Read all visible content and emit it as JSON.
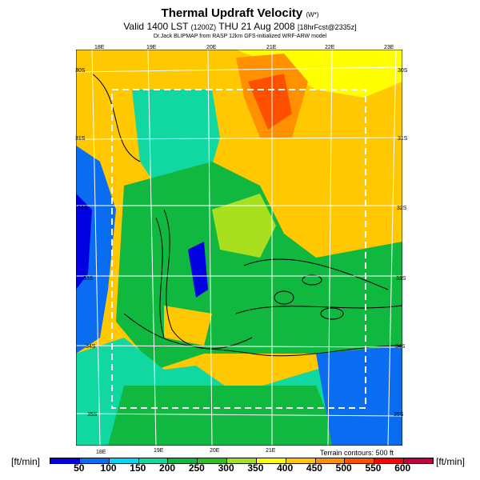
{
  "header": {
    "title": "Thermal Updraft Velocity",
    "title_units": "(W*)",
    "valid_prefix": "Valid 1400 LST",
    "valid_z": "(1200Z)",
    "valid_date": "THU 21 Aug 2008",
    "forecast": "[18hrFcst@2335z]",
    "credit": "Dr.Jack BLIPMAP from RASP 12km GFS-initialized WRF-ARW model"
  },
  "map": {
    "lon_top": [
      "18E",
      "19E",
      "20E",
      "21E",
      "22E",
      "23E"
    ],
    "lon_bottom": [
      "18E",
      "19E",
      "20E",
      "21E"
    ],
    "lat_left": [
      "30S",
      "31S",
      "32S",
      "33S",
      "34S",
      "35S"
    ],
    "lat_right": [
      "30S",
      "31S",
      "32S",
      "33S",
      "34S",
      "35S"
    ],
    "terrain_note": "Terrain contours: 500 ft"
  },
  "colorbar": {
    "unit_left": "[ft/min]",
    "unit_right": "[ft/min]",
    "ticks": [
      "50",
      "100",
      "150",
      "200",
      "250",
      "300",
      "350",
      "400",
      "450",
      "500",
      "550",
      "600"
    ],
    "colors": [
      "#0000e0",
      "#0a6cf0",
      "#00d8f8",
      "#10d8a0",
      "#10b840",
      "#30c020",
      "#a8e020",
      "#ffff00",
      "#ffc800",
      "#ff9000",
      "#ff5000",
      "#ff0000",
      "#c00040"
    ]
  }
}
